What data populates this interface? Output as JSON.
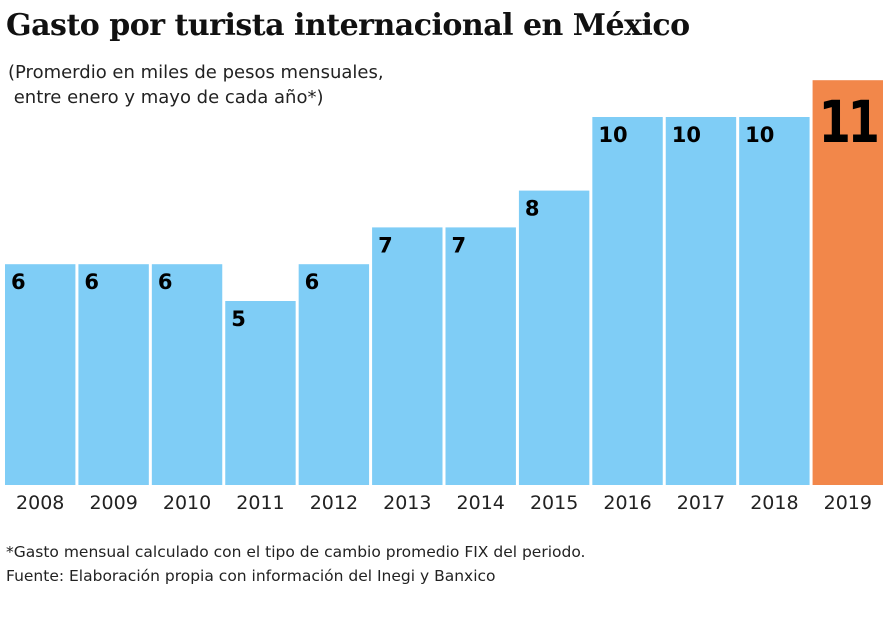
{
  "chart_data": {
    "type": "bar",
    "title": "Gasto por turista internacional en México",
    "subtitle": "(Promerdio en miles de pesos mensuales,\n entre enero y mayo de cada año*)",
    "categories": [
      "2008",
      "2009",
      "2010",
      "2011",
      "2012",
      "2013",
      "2014",
      "2015",
      "2016",
      "2017",
      "2018",
      "2019"
    ],
    "values": [
      6,
      6,
      6,
      5,
      6,
      7,
      7,
      8,
      10,
      10,
      10,
      11
    ],
    "data_labels": [
      "6",
      "6",
      "6",
      "5",
      "6",
      "7",
      "7",
      "8",
      "10",
      "10",
      "10",
      "11"
    ],
    "xlabel": "",
    "ylabel": "",
    "ylim": [
      0,
      11
    ],
    "grid": false,
    "colors": {
      "default": "#7fcdf6",
      "highlight": "#f2874a"
    },
    "highlight_index": 11
  },
  "footnotes": {
    "note": "*Gasto mensual calculado con el tipo de cambio promedio FIX del periodo.",
    "source": "Fuente: Elaboración propia con información del Inegi y Banxico"
  }
}
